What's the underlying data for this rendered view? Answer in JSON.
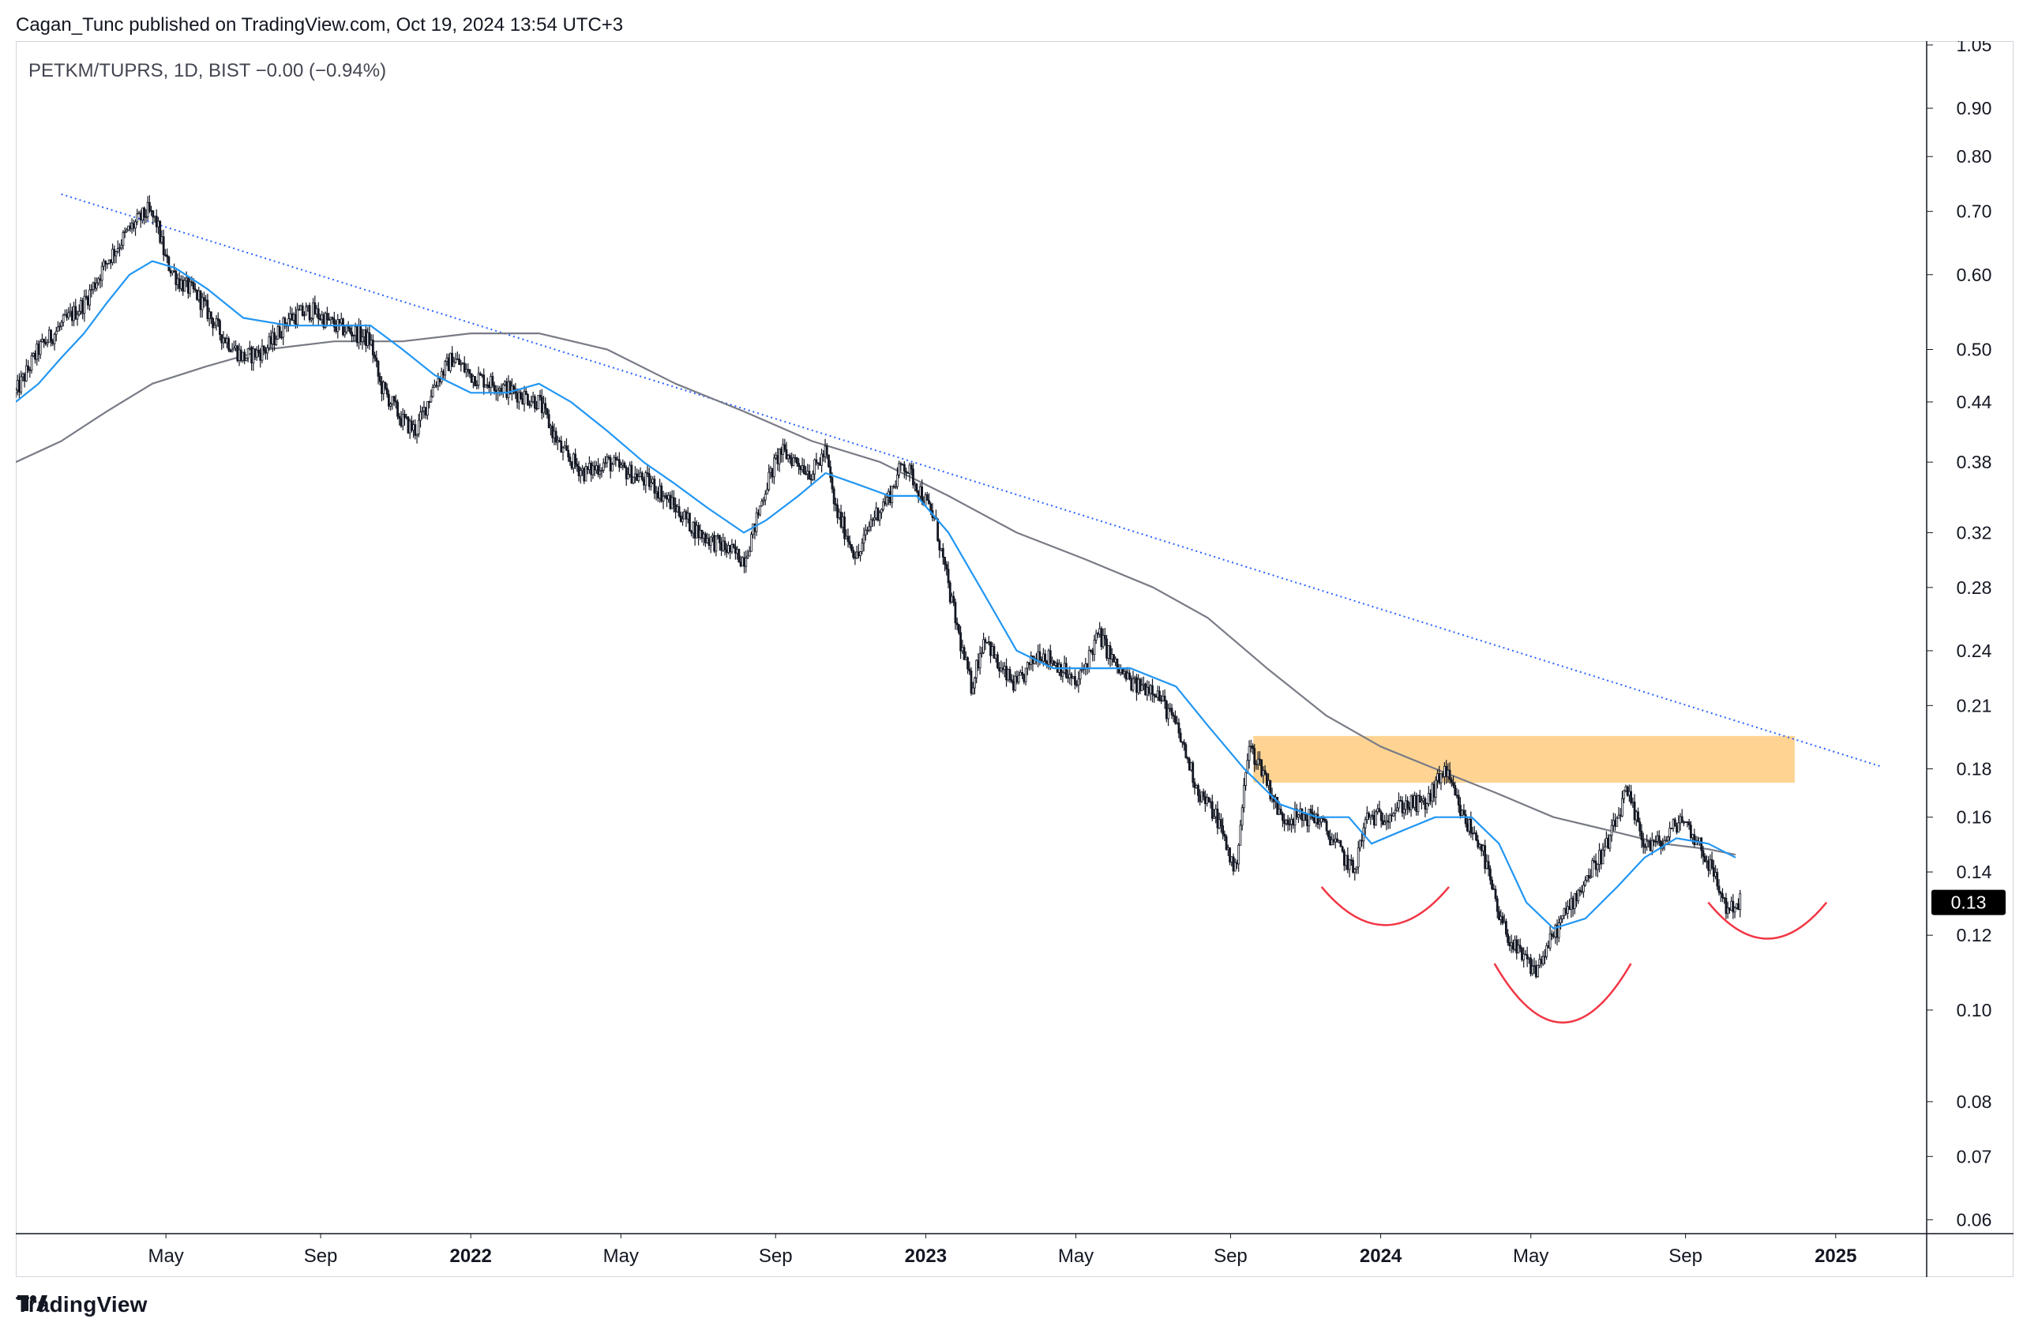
{
  "header": {
    "published_by": "Cagan_Tunc published on TradingView.com, Oct 19, 2024 13:54 UTC+3"
  },
  "legend": {
    "symbol_line": "PETKM/TUPRS, 1D, BIST  −0.00 (−0.94%)"
  },
  "footer": {
    "brand": "TradingView"
  },
  "colors": {
    "candle": "#131722",
    "ma_fast": "#2196f3",
    "ma_slow": "#787b86",
    "trendline": "#2962ff",
    "zone": "#ffcc80",
    "arc": "#f23645",
    "price_tag_bg": "#000000"
  },
  "chart_data": {
    "type": "line",
    "title": "PETKM/TUPRS, 1D, BIST",
    "scale": "log",
    "ylim": [
      0.058,
      1.06
    ],
    "yticks": [
      {
        "v": 1.05,
        "t": "1.05"
      },
      {
        "v": 0.9,
        "t": "0.90"
      },
      {
        "v": 0.8,
        "t": "0.80"
      },
      {
        "v": 0.7,
        "t": "0.70"
      },
      {
        "v": 0.6,
        "t": "0.60"
      },
      {
        "v": 0.5,
        "t": "0.50"
      },
      {
        "v": 0.44,
        "t": "0.44"
      },
      {
        "v": 0.38,
        "t": "0.38"
      },
      {
        "v": 0.32,
        "t": "0.32"
      },
      {
        "v": 0.28,
        "t": "0.28"
      },
      {
        "v": 0.24,
        "t": "0.24"
      },
      {
        "v": 0.21,
        "t": "0.21"
      },
      {
        "v": 0.18,
        "t": "0.18"
      },
      {
        "v": 0.16,
        "t": "0.16"
      },
      {
        "v": 0.14,
        "t": "0.14"
      },
      {
        "v": 0.12,
        "t": "0.12"
      },
      {
        "v": 0.1,
        "t": "0.10"
      },
      {
        "v": 0.08,
        "t": "0.08"
      },
      {
        "v": 0.07,
        "t": "0.07"
      },
      {
        "v": 0.06,
        "t": "0.06"
      }
    ],
    "xlim": [
      2021.0,
      2025.2
    ],
    "xticks": [
      {
        "v": 2021.33,
        "t": "May",
        "bold": false
      },
      {
        "v": 2021.67,
        "t": "Sep",
        "bold": false
      },
      {
        "v": 2022.0,
        "t": "2022",
        "bold": true
      },
      {
        "v": 2022.33,
        "t": "May",
        "bold": false
      },
      {
        "v": 2022.67,
        "t": "Sep",
        "bold": false
      },
      {
        "v": 2023.0,
        "t": "2023",
        "bold": true
      },
      {
        "v": 2023.33,
        "t": "May",
        "bold": false
      },
      {
        "v": 2023.67,
        "t": "Sep",
        "bold": false
      },
      {
        "v": 2024.0,
        "t": "2024",
        "bold": true
      },
      {
        "v": 2024.33,
        "t": "May",
        "bold": false
      },
      {
        "v": 2024.67,
        "t": "Sep",
        "bold": false
      },
      {
        "v": 2025.0,
        "t": "2025",
        "bold": true
      }
    ],
    "last_price": {
      "value": 0.13,
      "label": "0.13"
    },
    "price_path": [
      [
        2021.0,
        0.45
      ],
      [
        2021.05,
        0.5
      ],
      [
        2021.1,
        0.53
      ],
      [
        2021.15,
        0.56
      ],
      [
        2021.2,
        0.62
      ],
      [
        2021.25,
        0.67
      ],
      [
        2021.29,
        0.7
      ],
      [
        2021.31,
        0.68
      ],
      [
        2021.33,
        0.62
      ],
      [
        2021.36,
        0.59
      ],
      [
        2021.4,
        0.57
      ],
      [
        2021.45,
        0.52
      ],
      [
        2021.5,
        0.49
      ],
      [
        2021.55,
        0.5
      ],
      [
        2021.6,
        0.54
      ],
      [
        2021.65,
        0.55
      ],
      [
        2021.7,
        0.53
      ],
      [
        2021.75,
        0.52
      ],
      [
        2021.78,
        0.51
      ],
      [
        2021.8,
        0.46
      ],
      [
        2021.85,
        0.42
      ],
      [
        2021.88,
        0.41
      ],
      [
        2021.92,
        0.46
      ],
      [
        2021.96,
        0.49
      ],
      [
        2022.0,
        0.47
      ],
      [
        2022.05,
        0.46
      ],
      [
        2022.1,
        0.45
      ],
      [
        2022.15,
        0.44
      ],
      [
        2022.2,
        0.39
      ],
      [
        2022.25,
        0.37
      ],
      [
        2022.3,
        0.38
      ],
      [
        2022.35,
        0.37
      ],
      [
        2022.4,
        0.36
      ],
      [
        2022.45,
        0.34
      ],
      [
        2022.5,
        0.32
      ],
      [
        2022.55,
        0.31
      ],
      [
        2022.6,
        0.3
      ],
      [
        2022.62,
        0.32
      ],
      [
        2022.65,
        0.36
      ],
      [
        2022.68,
        0.39
      ],
      [
        2022.72,
        0.38
      ],
      [
        2022.75,
        0.37
      ],
      [
        2022.78,
        0.39
      ],
      [
        2022.8,
        0.34
      ],
      [
        2022.85,
        0.3
      ],
      [
        2022.88,
        0.33
      ],
      [
        2022.92,
        0.35
      ],
      [
        2022.95,
        0.38
      ],
      [
        2022.98,
        0.36
      ],
      [
        2023.02,
        0.33
      ],
      [
        2023.05,
        0.28
      ],
      [
        2023.08,
        0.24
      ],
      [
        2023.1,
        0.22
      ],
      [
        2023.13,
        0.25
      ],
      [
        2023.16,
        0.23
      ],
      [
        2023.2,
        0.22
      ],
      [
        2023.25,
        0.24
      ],
      [
        2023.3,
        0.23
      ],
      [
        2023.33,
        0.22
      ],
      [
        2023.38,
        0.25
      ],
      [
        2023.42,
        0.23
      ],
      [
        2023.46,
        0.22
      ],
      [
        2023.5,
        0.22
      ],
      [
        2023.55,
        0.2
      ],
      [
        2023.6,
        0.17
      ],
      [
        2023.64,
        0.16
      ],
      [
        2023.68,
        0.14
      ],
      [
        2023.71,
        0.19
      ],
      [
        2023.74,
        0.18
      ],
      [
        2023.78,
        0.16
      ],
      [
        2023.82,
        0.16
      ],
      [
        2023.86,
        0.16
      ],
      [
        2023.9,
        0.15
      ],
      [
        2023.94,
        0.14
      ],
      [
        2023.97,
        0.16
      ],
      [
        2024.0,
        0.16
      ],
      [
        2024.05,
        0.165
      ],
      [
        2024.1,
        0.165
      ],
      [
        2024.14,
        0.18
      ],
      [
        2024.18,
        0.16
      ],
      [
        2024.22,
        0.15
      ],
      [
        2024.26,
        0.125
      ],
      [
        2024.3,
        0.115
      ],
      [
        2024.34,
        0.11
      ],
      [
        2024.38,
        0.12
      ],
      [
        2024.42,
        0.13
      ],
      [
        2024.46,
        0.14
      ],
      [
        2024.5,
        0.15
      ],
      [
        2024.54,
        0.17
      ],
      [
        2024.58,
        0.15
      ],
      [
        2024.62,
        0.15
      ],
      [
        2024.66,
        0.16
      ],
      [
        2024.7,
        0.15
      ],
      [
        2024.73,
        0.14
      ],
      [
        2024.76,
        0.128
      ],
      [
        2024.79,
        0.13
      ]
    ],
    "series": [
      {
        "name": "moving-average-fast",
        "color": "#2196f3",
        "points": [
          [
            2021.0,
            0.44
          ],
          [
            2021.05,
            0.46
          ],
          [
            2021.1,
            0.49
          ],
          [
            2021.15,
            0.52
          ],
          [
            2021.2,
            0.56
          ],
          [
            2021.25,
            0.6
          ],
          [
            2021.3,
            0.62
          ],
          [
            2021.35,
            0.61
          ],
          [
            2021.42,
            0.58
          ],
          [
            2021.5,
            0.54
          ],
          [
            2021.6,
            0.53
          ],
          [
            2021.7,
            0.53
          ],
          [
            2021.78,
            0.53
          ],
          [
            2021.85,
            0.5
          ],
          [
            2021.92,
            0.47
          ],
          [
            2022.0,
            0.45
          ],
          [
            2022.08,
            0.45
          ],
          [
            2022.15,
            0.46
          ],
          [
            2022.22,
            0.44
          ],
          [
            2022.3,
            0.41
          ],
          [
            2022.38,
            0.38
          ],
          [
            2022.45,
            0.36
          ],
          [
            2022.52,
            0.34
          ],
          [
            2022.6,
            0.32
          ],
          [
            2022.65,
            0.33
          ],
          [
            2022.72,
            0.35
          ],
          [
            2022.78,
            0.37
          ],
          [
            2022.85,
            0.36
          ],
          [
            2022.92,
            0.35
          ],
          [
            2022.98,
            0.35
          ],
          [
            2023.05,
            0.32
          ],
          [
            2023.12,
            0.28
          ],
          [
            2023.2,
            0.24
          ],
          [
            2023.28,
            0.23
          ],
          [
            2023.36,
            0.23
          ],
          [
            2023.45,
            0.23
          ],
          [
            2023.55,
            0.22
          ],
          [
            2023.62,
            0.2
          ],
          [
            2023.7,
            0.18
          ],
          [
            2023.78,
            0.165
          ],
          [
            2023.86,
            0.16
          ],
          [
            2023.93,
            0.16
          ],
          [
            2023.98,
            0.15
          ],
          [
            2024.05,
            0.155
          ],
          [
            2024.12,
            0.16
          ],
          [
            2024.2,
            0.16
          ],
          [
            2024.26,
            0.15
          ],
          [
            2024.32,
            0.13
          ],
          [
            2024.38,
            0.122
          ],
          [
            2024.45,
            0.125
          ],
          [
            2024.52,
            0.135
          ],
          [
            2024.58,
            0.145
          ],
          [
            2024.65,
            0.152
          ],
          [
            2024.72,
            0.15
          ],
          [
            2024.78,
            0.145
          ]
        ]
      },
      {
        "name": "moving-average-slow",
        "color": "#787b86",
        "points": [
          [
            2021.0,
            0.38
          ],
          [
            2021.1,
            0.4
          ],
          [
            2021.2,
            0.43
          ],
          [
            2021.3,
            0.46
          ],
          [
            2021.42,
            0.48
          ],
          [
            2021.55,
            0.5
          ],
          [
            2021.7,
            0.51
          ],
          [
            2021.85,
            0.51
          ],
          [
            2022.0,
            0.52
          ],
          [
            2022.15,
            0.52
          ],
          [
            2022.3,
            0.5
          ],
          [
            2022.45,
            0.46
          ],
          [
            2022.6,
            0.43
          ],
          [
            2022.75,
            0.4
          ],
          [
            2022.9,
            0.38
          ],
          [
            2023.05,
            0.35
          ],
          [
            2023.2,
            0.32
          ],
          [
            2023.35,
            0.3
          ],
          [
            2023.5,
            0.28
          ],
          [
            2023.62,
            0.26
          ],
          [
            2023.75,
            0.23
          ],
          [
            2023.88,
            0.205
          ],
          [
            2024.0,
            0.19
          ],
          [
            2024.12,
            0.18
          ],
          [
            2024.25,
            0.17
          ],
          [
            2024.38,
            0.16
          ],
          [
            2024.5,
            0.155
          ],
          [
            2024.62,
            0.15
          ],
          [
            2024.72,
            0.148
          ],
          [
            2024.78,
            0.146
          ]
        ]
      }
    ],
    "trendline": {
      "from": [
        2021.1,
        0.73
      ],
      "to": [
        2025.1,
        0.181
      ]
    },
    "resistance_zone": {
      "x": [
        2023.72,
        2024.91
      ],
      "y": [
        0.174,
        0.195
      ]
    },
    "annotations": [
      {
        "type": "arc",
        "x": [
          2023.87,
          2024.15
        ],
        "y_top": 0.135,
        "y_bottom": 0.123
      },
      {
        "type": "arc",
        "x": [
          2024.25,
          2024.55
        ],
        "y_top": 0.112,
        "y_bottom": 0.097
      },
      {
        "type": "arc",
        "x": [
          2024.72,
          2024.98
        ],
        "y_top": 0.13,
        "y_bottom": 0.119
      }
    ]
  }
}
